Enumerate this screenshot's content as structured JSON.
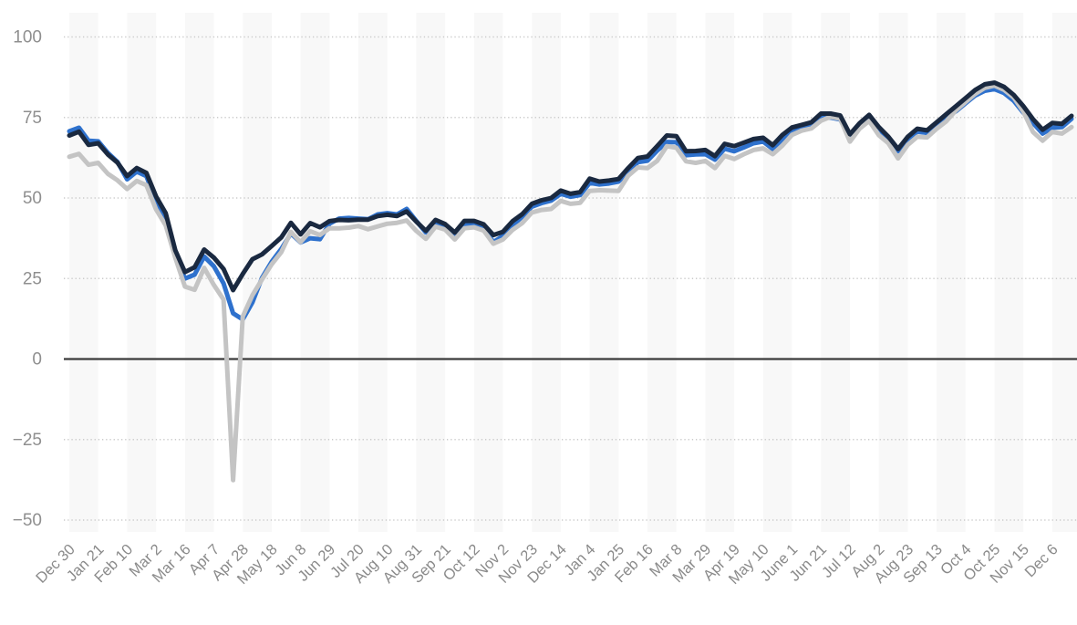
{
  "colors": {
    "background": "#ffffff",
    "band": "#f8f8f8",
    "grid_dotted": "#cbcbcb",
    "zero_line": "#3a3a3a",
    "y_label": "#8f8f8f",
    "x_label": "#8a8a8a",
    "series_dark_navy": "#1a2940",
    "series_blue": "#2e71cd",
    "series_gray": "#c4c4c4"
  },
  "axes": {
    "y_tick_labels": [
      "100",
      "75",
      "50",
      "25",
      "0",
      "−25",
      "−50"
    ],
    "y_tick_values": [
      100,
      75,
      50,
      25,
      0,
      -25,
      -50
    ]
  },
  "chart_data": {
    "type": "line",
    "title": "",
    "legend": "none-visible",
    "grid": "horizontal dotted lines; solid dark line at 0; alternating light vertical background bands",
    "ylim": [
      -50,
      100
    ],
    "points_per_label_interval": 3,
    "x_tick_labels": [
      "Dec 30",
      "Jan 21",
      "Feb 10",
      "Mar 2",
      "Mar 16",
      "Apr 7",
      "Apr 28",
      "May 18",
      "Jun 8",
      "Jun 29",
      "Jul 20",
      "Aug 10",
      "Aug 31",
      "Sep 21",
      "Oct 12",
      "Nov 2",
      "Nov 23",
      "Dec 14",
      "Jan 4",
      "Jan 25",
      "Feb 16",
      "Mar 8",
      "Mar 29",
      "Apr 19",
      "May 10",
      "June 1",
      "Jun 21",
      "Jul 12",
      "Aug 2",
      "Aug 23",
      "Sep 13",
      "Oct 4",
      "Oct 25",
      "Nov 15",
      "Dec 6"
    ],
    "series": [
      {
        "name": "blue-line",
        "color": "#2e71cd",
        "z": 1,
        "values": [
          70.7,
          71.8,
          67.8,
          67.6,
          64.0,
          61.2,
          55.8,
          58.2,
          56.8,
          49.0,
          43.5,
          32.0,
          25.0,
          26.2,
          31.8,
          28.8,
          23.5,
          14.2,
          12.3,
          17.6,
          25.2,
          30.2,
          34.2,
          39.0,
          36.2,
          37.5,
          37.2,
          42.0,
          43.6,
          43.8,
          43.6,
          43.4,
          44.9,
          45.3,
          44.9,
          46.6,
          42.9,
          39.3,
          42.2,
          41.3,
          38.8,
          41.7,
          41.5,
          40.8,
          36.3,
          38.2,
          41.5,
          44.2,
          47.3,
          48.4,
          49.2,
          51.3,
          50.4,
          50.9,
          54.7,
          54.2,
          54.5,
          55.1,
          58.2,
          61.1,
          61.6,
          64.7,
          67.4,
          67.3,
          63.3,
          63.5,
          63.6,
          61.9,
          65.3,
          64.5,
          65.7,
          67.0,
          67.5,
          65.2,
          68.3,
          70.5,
          71.4,
          72.3,
          74.9,
          75.0,
          74.4,
          68.8,
          72.0,
          74.6,
          71.0,
          68.2,
          64.5,
          68.2,
          70.6,
          70.2,
          72.7,
          75.2,
          76.9,
          79.4,
          81.8,
          83.3,
          83.8,
          82.6,
          80.2,
          76.5,
          73.3,
          70.0,
          71.8,
          72.0,
          74.6
        ]
      },
      {
        "name": "gray-line",
        "color": "#c4c4c4",
        "z": 2,
        "values": [
          62.8,
          63.7,
          60.3,
          60.9,
          57.5,
          55.5,
          52.8,
          55.3,
          54.0,
          46.5,
          41.5,
          31.5,
          22.5,
          21.5,
          28.3,
          23.0,
          18.5,
          -37.6,
          13.2,
          19.8,
          24.7,
          29.4,
          33.2,
          39.5,
          36.3,
          39.7,
          38.5,
          40.6,
          40.6,
          40.8,
          41.3,
          40.3,
          41.2,
          42.0,
          42.3,
          43.0,
          39.8,
          37.3,
          41.1,
          40.2,
          37.1,
          40.6,
          40.9,
          39.9,
          35.8,
          37.1,
          40.1,
          42.2,
          45.5,
          46.3,
          46.6,
          49.1,
          48.2,
          48.5,
          52.2,
          52.4,
          52.3,
          52.2,
          56.9,
          59.5,
          59.3,
          61.5,
          66.1,
          65.6,
          61.4,
          60.9,
          61.5,
          59.3,
          63.1,
          62.1,
          63.6,
          64.9,
          65.4,
          63.6,
          66.3,
          69.6,
          70.9,
          71.6,
          74.0,
          75.2,
          74.6,
          67.5,
          71.5,
          73.9,
          69.5,
          67.0,
          62.3,
          66.5,
          69.0,
          68.8,
          71.5,
          73.8,
          77.2,
          79.8,
          82.3,
          84.2,
          84.9,
          83.6,
          81.2,
          76.8,
          70.5,
          67.8,
          70.5,
          70.0,
          72.0
        ]
      },
      {
        "name": "dark-navy-line",
        "color": "#1a2940",
        "z": 3,
        "values": [
          69.4,
          70.6,
          66.5,
          67.0,
          63.5,
          61.0,
          56.8,
          59.3,
          57.8,
          50.5,
          45.3,
          33.8,
          27.0,
          28.5,
          34.0,
          31.5,
          28.0,
          21.4,
          26.4,
          31.0,
          32.5,
          35.1,
          37.8,
          42.3,
          38.7,
          42.2,
          40.9,
          42.8,
          43.2,
          43.1,
          43.3,
          43.3,
          44.4,
          44.8,
          44.4,
          45.8,
          42.7,
          39.8,
          43.2,
          41.9,
          39.3,
          42.9,
          42.9,
          41.8,
          38.5,
          39.5,
          42.8,
          45.0,
          48.2,
          49.3,
          50.0,
          52.3,
          51.3,
          51.8,
          56.0,
          55.1,
          55.4,
          55.9,
          59.3,
          62.4,
          62.9,
          66.1,
          69.4,
          69.2,
          64.5,
          64.6,
          64.9,
          63.0,
          66.8,
          66.1,
          67.2,
          68.3,
          68.7,
          66.4,
          69.6,
          71.9,
          72.7,
          73.5,
          76.2,
          76.2,
          75.6,
          69.8,
          73.2,
          75.8,
          72.0,
          69.0,
          65.2,
          69.0,
          71.5,
          71.0,
          73.5,
          76.0,
          78.5,
          81.0,
          83.5,
          85.3,
          85.8,
          84.5,
          82.0,
          78.5,
          74.5,
          71.2,
          73.3,
          73.0,
          75.5
        ]
      }
    ]
  }
}
